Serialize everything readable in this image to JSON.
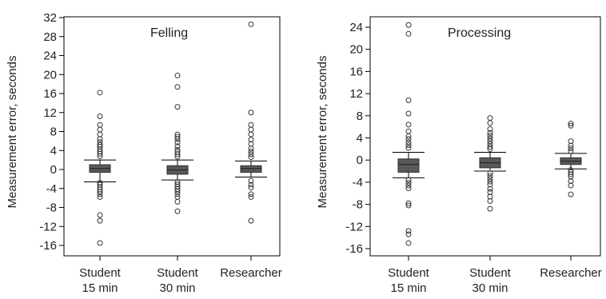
{
  "chart_data": [
    {
      "type": "box",
      "title": "Felling",
      "xlabel": "",
      "ylabel": "Measurement error, seconds",
      "ylim": [
        -17,
        33
      ],
      "yticks": [
        32,
        28,
        24,
        20,
        16,
        12,
        8,
        4,
        0,
        -4,
        -8,
        -12,
        -16
      ],
      "categories": [
        [
          "Student",
          "15 min"
        ],
        [
          "Student",
          "30 min"
        ],
        [
          "Researcher"
        ]
      ],
      "boxes": [
        {
          "q1": -0.6,
          "median": 0.2,
          "q3": 1.0,
          "whisker_low": -2.6,
          "whisker_high": 2.0,
          "outliers": [
            16.2,
            11.2,
            9.4,
            8.4,
            7.4,
            6.4,
            5.8,
            5.2,
            4.8,
            4.3,
            3.8,
            3.3,
            2.8,
            -2.8,
            -3.2,
            -3.7,
            -4.2,
            -4.7,
            -5.2,
            -5.8,
            -9.6,
            -10.8,
            -15.5
          ]
        },
        {
          "q1": -1.0,
          "median": -0.1,
          "q3": 0.8,
          "whisker_low": -2.2,
          "whisker_high": 2.0,
          "outliers": [
            19.8,
            17.4,
            13.2,
            7.4,
            6.9,
            6.4,
            5.7,
            4.9,
            4.2,
            3.7,
            3.2,
            2.7,
            -2.6,
            -3.1,
            -3.6,
            -4.1,
            -4.6,
            -5.2,
            -5.8,
            -6.8,
            -8.8
          ]
        },
        {
          "q1": -0.6,
          "median": 0.2,
          "q3": 0.8,
          "whisker_low": -1.6,
          "whisker_high": 1.8,
          "outliers": [
            30.6,
            12.0,
            9.4,
            8.4,
            7.4,
            6.3,
            5.4,
            4.4,
            3.8,
            3.2,
            2.6,
            -2.4,
            -3.2,
            -3.8,
            -5.2,
            -5.8,
            -10.8
          ]
        }
      ]
    },
    {
      "type": "box",
      "title": "Processing",
      "xlabel": "",
      "ylabel": "Measurement error, seconds",
      "ylim": [
        -17,
        26
      ],
      "yticks": [
        24,
        20,
        16,
        12,
        8,
        4,
        0,
        -4,
        -8,
        -12,
        -16
      ],
      "categories": [
        [
          "Student",
          "15 min"
        ],
        [
          "Student",
          "30 min"
        ],
        [
          "Researcher"
        ]
      ],
      "boxes": [
        {
          "q1": -2.2,
          "median": -0.8,
          "q3": 0.2,
          "whisker_low": -3.2,
          "whisker_high": 1.4,
          "outliers": [
            24.4,
            22.8,
            10.8,
            8.4,
            6.4,
            5.2,
            4.3,
            3.8,
            3.2,
            2.7,
            2.2,
            -3.6,
            -4.1,
            -4.6,
            -5.1,
            -7.8,
            -8.2,
            -12.8,
            -13.4,
            -15.0
          ]
        },
        {
          "q1": -1.4,
          "median": -0.5,
          "q3": 0.4,
          "whisker_low": -2.0,
          "whisker_high": 1.4,
          "outliers": [
            7.6,
            6.7,
            5.6,
            4.9,
            4.4,
            3.9,
            3.4,
            2.9,
            2.4,
            2.0,
            -2.4,
            -2.9,
            -3.4,
            -3.9,
            -4.4,
            -5.2,
            -5.8,
            -6.6,
            -7.4,
            -8.8
          ]
        },
        {
          "q1": -0.8,
          "median": -0.2,
          "q3": 0.4,
          "whisker_low": -1.6,
          "whisker_high": 1.2,
          "outliers": [
            6.6,
            6.2,
            3.4,
            2.6,
            2.1,
            1.6,
            -1.8,
            -2.2,
            -2.6,
            -3.0,
            -3.8,
            -4.6,
            -6.2
          ]
        }
      ]
    }
  ]
}
